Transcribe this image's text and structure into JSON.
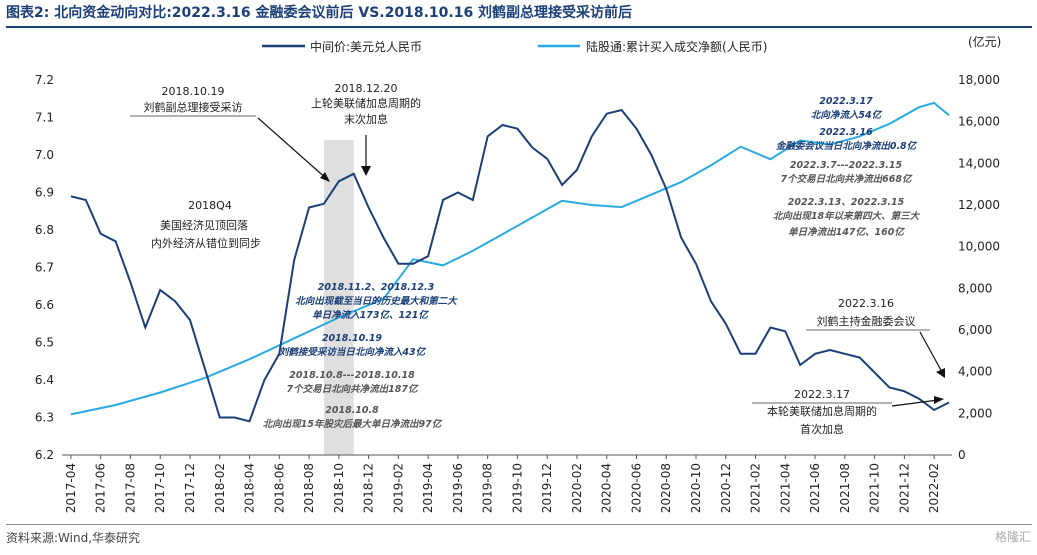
{
  "header": {
    "title": "图表2:  北向资金动向对比:2022.3.16 金融委会议前后 VS.2018.10.16 刘鹤副总理接受采访前后"
  },
  "footer": {
    "source": "资料来源:Wind,华泰研究",
    "watermark": "格隆汇"
  },
  "colors": {
    "left_series": "#1c3f78",
    "right_series": "#29abe2",
    "title": "#1c3f78",
    "red": "#d42020"
  },
  "chart_data": {
    "type": "line",
    "right_unit": "(亿元)",
    "y_left": {
      "ticks": [
        "6.2",
        "6.3",
        "6.4",
        "6.5",
        "6.6",
        "6.7",
        "6.8",
        "6.9",
        "7.0",
        "7.1",
        "7.2"
      ],
      "lim": [
        6.2,
        7.2
      ]
    },
    "y_right": {
      "ticks": [
        "0",
        "2,000",
        "4,000",
        "6,000",
        "8,000",
        "10,000",
        "12,000",
        "14,000",
        "16,000",
        "18,000"
      ],
      "lim": [
        0,
        18000
      ]
    },
    "x_ticks": [
      "2017-04",
      "2017-06",
      "2017-08",
      "2017-10",
      "2017-12",
      "2018-02",
      "2018-04",
      "2018-06",
      "2018-08",
      "2018-10",
      "2018-12",
      "2019-02",
      "2019-04",
      "2019-06",
      "2019-08",
      "2019-10",
      "2019-12",
      "2020-02",
      "2020-04",
      "2020-06",
      "2020-08",
      "2020-10",
      "2020-12",
      "2021-02",
      "2021-04",
      "2021-06",
      "2021-08",
      "2021-10",
      "2021-12",
      "2022-02"
    ],
    "grid": false,
    "legend_position": "top",
    "shaded_period": [
      "2018-09",
      "2018-11"
    ],
    "series": [
      {
        "name": "中间价:美元兑人民币",
        "axis": "left",
        "x": [
          "2017-04",
          "2017-05",
          "2017-06",
          "2017-07",
          "2017-08",
          "2017-09",
          "2017-10",
          "2017-11",
          "2017-12",
          "2018-01",
          "2018-02",
          "2018-03",
          "2018-04",
          "2018-05",
          "2018-06",
          "2018-07",
          "2018-08",
          "2018-09",
          "2018-10",
          "2018-11",
          "2018-12",
          "2019-01",
          "2019-02",
          "2019-03",
          "2019-04",
          "2019-05",
          "2019-06",
          "2019-07",
          "2019-08",
          "2019-09",
          "2019-10",
          "2019-11",
          "2019-12",
          "2020-01",
          "2020-02",
          "2020-03",
          "2020-04",
          "2020-05",
          "2020-06",
          "2020-07",
          "2020-08",
          "2020-09",
          "2020-10",
          "2020-11",
          "2020-12",
          "2021-01",
          "2021-02",
          "2021-03",
          "2021-04",
          "2021-05",
          "2021-06",
          "2021-07",
          "2021-08",
          "2021-09",
          "2021-10",
          "2021-11",
          "2021-12",
          "2022-01",
          "2022-02",
          "2022-03"
        ],
        "values": [
          6.89,
          6.88,
          6.79,
          6.77,
          6.66,
          6.54,
          6.64,
          6.61,
          6.56,
          6.43,
          6.3,
          6.3,
          6.29,
          6.4,
          6.47,
          6.72,
          6.86,
          6.87,
          6.93,
          6.95,
          6.86,
          6.78,
          6.71,
          6.71,
          6.73,
          6.88,
          6.9,
          6.88,
          7.05,
          7.08,
          7.07,
          7.02,
          6.99,
          6.92,
          6.96,
          7.05,
          7.11,
          7.12,
          7.07,
          7.0,
          6.91,
          6.78,
          6.71,
          6.61,
          6.55,
          6.47,
          6.47,
          6.54,
          6.53,
          6.44,
          6.47,
          6.48,
          6.47,
          6.46,
          6.42,
          6.38,
          6.37,
          6.35,
          6.32,
          6.34
        ]
      },
      {
        "name": "陆股通:累计买入成交净额(人民币)",
        "axis": "right",
        "x": [
          "2017-04",
          "2017-07",
          "2017-10",
          "2018-01",
          "2018-04",
          "2018-07",
          "2018-10",
          "2019-01",
          "2019-03",
          "2019-05",
          "2019-07",
          "2019-09",
          "2019-11",
          "2020-01",
          "2020-03",
          "2020-05",
          "2020-07",
          "2020-09",
          "2020-11",
          "2021-01",
          "2021-03",
          "2021-05",
          "2021-07",
          "2021-09",
          "2021-11",
          "2022-01",
          "2022-02",
          "2022-03"
        ],
        "values": [
          1950,
          2400,
          3000,
          3700,
          4600,
          5600,
          6600,
          7500,
          9400,
          9100,
          9800,
          10600,
          11400,
          12200,
          12000,
          11900,
          12500,
          13100,
          13900,
          14800,
          14200,
          15100,
          14900,
          15300,
          15900,
          16700,
          16900,
          16300
        ]
      }
    ],
    "annotations": [
      {
        "label": "2018.10.19",
        "text": "刘鹤副总理接受采访"
      },
      {
        "label": "2018.12.20",
        "text": "上轮美联储加息周期的",
        "text2": "末次加息"
      },
      {
        "label": "2018Q4",
        "text": "美国经济见顶回落",
        "text2": "内外经济从错位到同步"
      },
      {
        "label": "2022.3.16",
        "text": "刘鹤主持金融委会议"
      },
      {
        "label": "2022.3.17",
        "text": "本轮美联储加息周期的",
        "text2": "首次加息"
      }
    ],
    "north_notes_2018": [
      {
        "head": "2018.11.2、2018.12.3",
        "line1": "北向出现截至当日的历史最大和第二大",
        "line2": "单日净流入173亿、121亿"
      },
      {
        "head": "2018.10.19",
        "line1": "刘鹤接受采访当日北向净流入43亿"
      },
      {
        "head": "2018.10.8---2018.10.18",
        "line1": "7个交易日北向共净流出187亿"
      },
      {
        "head": "2018.10.8",
        "line1": "北向出现15年股灾后最大单日净流出97亿"
      }
    ],
    "north_notes_2022": [
      {
        "head": "2022.3.17",
        "line1": "北向净流入54亿"
      },
      {
        "head": "2022.3.16",
        "line1": "金融委会议当日北向净流出0.8亿"
      },
      {
        "head": "2022.3.7---2022.3.15",
        "line1": "7个交易日北向共净流出668亿"
      },
      {
        "head": "2022.3.13、2022.3.15",
        "line1": "北向出现18年以来第四大、第三大",
        "line2": "单日净流出147亿、160亿"
      }
    ]
  }
}
